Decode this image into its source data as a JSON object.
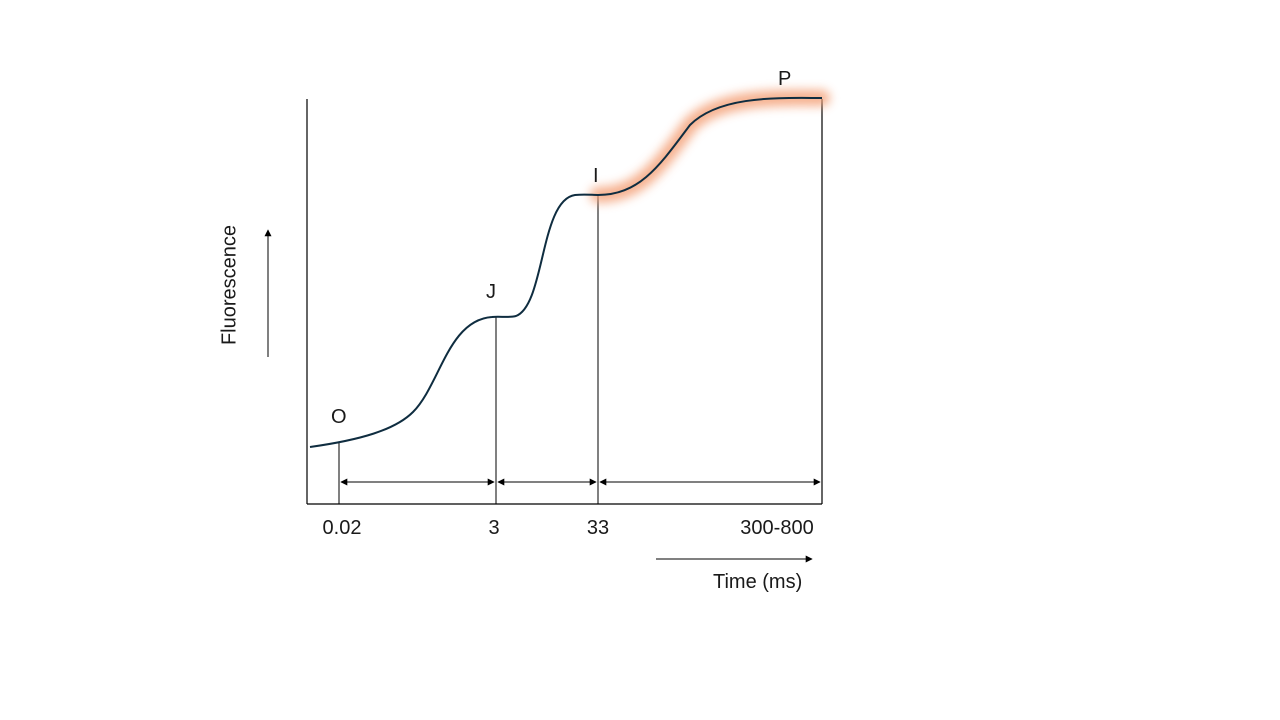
{
  "diagram": {
    "y_axis_title": "Fluorescence",
    "x_axis_title": "Time (ms)",
    "points": [
      {
        "label": "O"
      },
      {
        "label": "J"
      },
      {
        "label": "I"
      },
      {
        "label": "P"
      }
    ],
    "time_ticks": [
      "0.02",
      "3",
      "33",
      "300-800"
    ],
    "colors": {
      "curve": "#0f2d40",
      "highlight": "#f4a37a",
      "lines": "#000000"
    }
  }
}
